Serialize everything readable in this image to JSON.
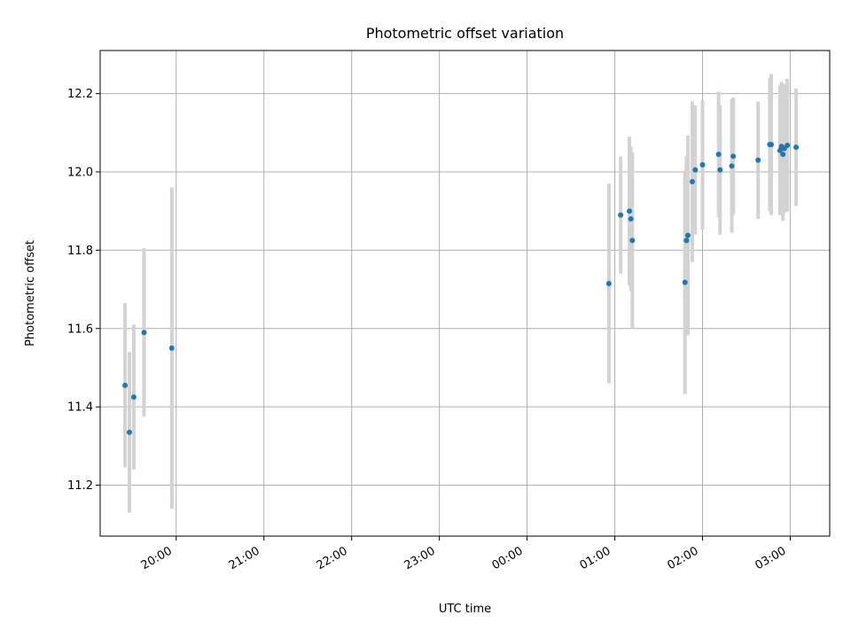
{
  "chart_data": {
    "type": "scatter",
    "title": "Photometric offset variation",
    "xlabel": "UTC time",
    "ylabel": "Photometric offset",
    "x_axis_kind": "time",
    "x_start": "19:00",
    "x_ticks": [
      "20:00",
      "21:00",
      "22:00",
      "23:00",
      "00:00",
      "01:00",
      "02:00",
      "03:00"
    ],
    "xlim": [
      "19:08",
      "03:27"
    ],
    "ylim": [
      11.07,
      12.31
    ],
    "y_ticks": [
      11.2,
      11.4,
      11.6,
      11.8,
      12.0,
      12.2
    ],
    "grid": true,
    "point_color": "#1f77b4",
    "errorbar_color": "#d3d3d3",
    "points": [
      {
        "x": "19:25",
        "y": 11.455,
        "yerr": 0.21
      },
      {
        "x": "19:28",
        "y": 11.335,
        "yerr": 0.205
      },
      {
        "x": "19:31",
        "y": 11.425,
        "yerr": 0.185
      },
      {
        "x": "19:38",
        "y": 11.59,
        "yerr": 0.215
      },
      {
        "x": "19:57",
        "y": 11.55,
        "yerr": 0.41
      },
      {
        "x": "00:56",
        "y": 11.715,
        "yerr": 0.255
      },
      {
        "x": "01:04",
        "y": 11.89,
        "yerr": 0.15
      },
      {
        "x": "01:10",
        "y": 11.9,
        "yerr": 0.19
      },
      {
        "x": "01:11",
        "y": 11.88,
        "yerr": 0.185
      },
      {
        "x": "01:12",
        "y": 11.825,
        "yerr": 0.225
      },
      {
        "x": "01:48",
        "y": 11.718,
        "yerr": 0.285
      },
      {
        "x": "01:49",
        "y": 11.825,
        "yerr": 0.215
      },
      {
        "x": "01:50",
        "y": 11.838,
        "yerr": 0.255
      },
      {
        "x": "01:53",
        "y": 11.975,
        "yerr": 0.205
      },
      {
        "x": "01:55",
        "y": 12.005,
        "yerr": 0.165
      },
      {
        "x": "02:00",
        "y": 12.018,
        "yerr": 0.165
      },
      {
        "x": "02:11",
        "y": 12.045,
        "yerr": 0.16
      },
      {
        "x": "02:12",
        "y": 12.005,
        "yerr": 0.165
      },
      {
        "x": "02:20",
        "y": 12.015,
        "yerr": 0.17
      },
      {
        "x": "02:21",
        "y": 12.04,
        "yerr": 0.15
      },
      {
        "x": "02:38",
        "y": 12.03,
        "yerr": 0.15
      },
      {
        "x": "02:46",
        "y": 12.07,
        "yerr": 0.17
      },
      {
        "x": "02:47",
        "y": 12.07,
        "yerr": 0.18
      },
      {
        "x": "02:53",
        "y": 12.055,
        "yerr": 0.165
      },
      {
        "x": "02:54",
        "y": 12.065,
        "yerr": 0.165
      },
      {
        "x": "02:55",
        "y": 12.045,
        "yerr": 0.17
      },
      {
        "x": "02:56",
        "y": 12.06,
        "yerr": 0.165
      },
      {
        "x": "02:58",
        "y": 12.068,
        "yerr": 0.17
      },
      {
        "x": "03:04",
        "y": 12.063,
        "yerr": 0.15
      }
    ]
  }
}
